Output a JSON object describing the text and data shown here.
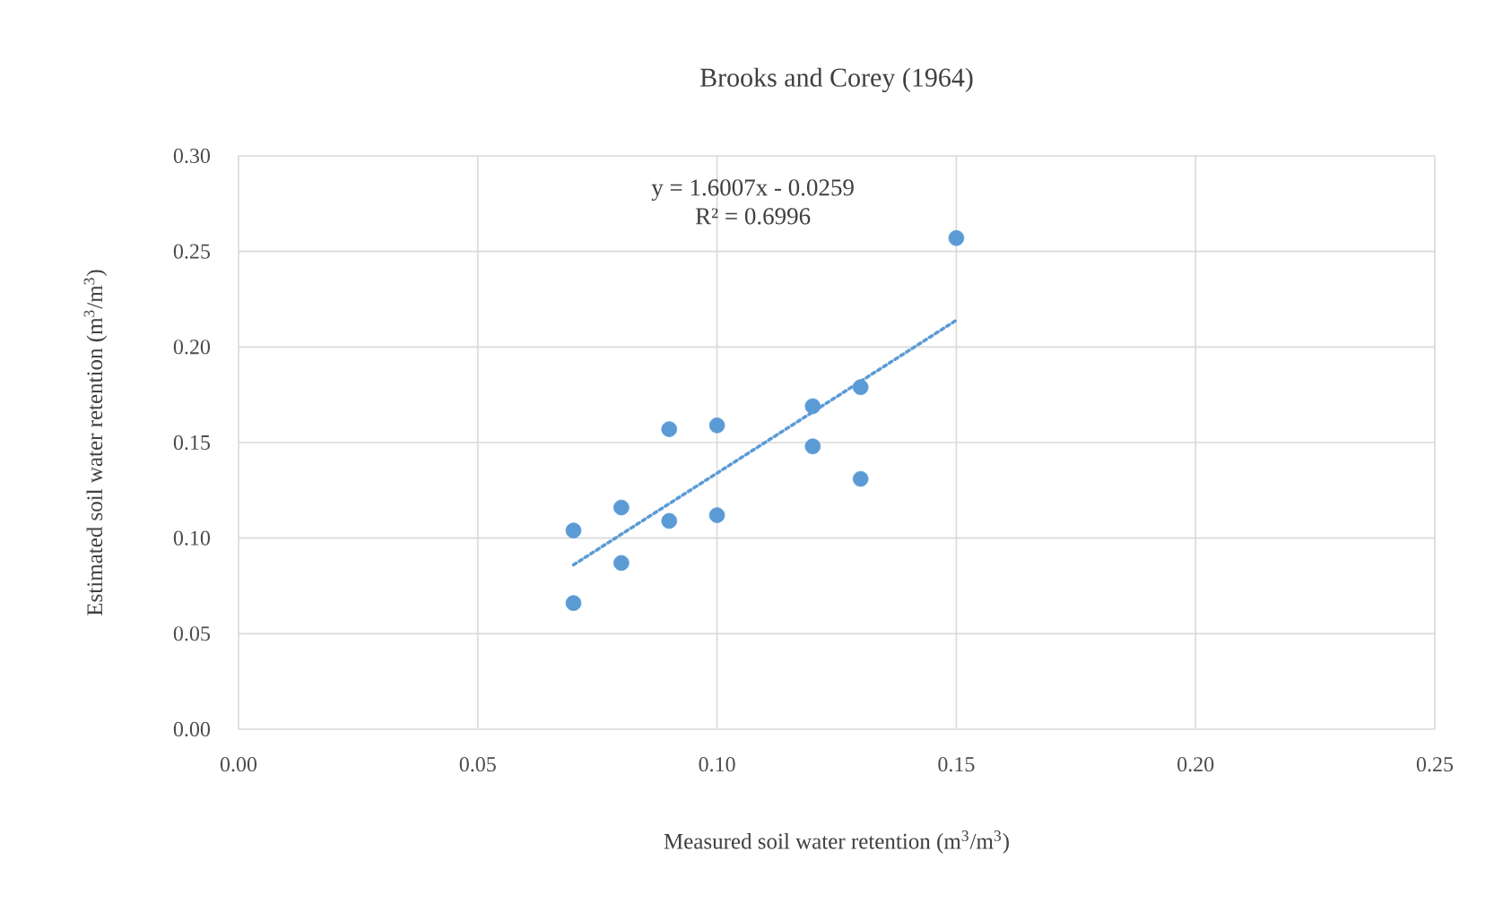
{
  "chart_data": {
    "type": "scatter",
    "title": "Brooks and Corey (1964)",
    "xlabel": "Measured soil water retention (m$^{3}$/m$^{3}$)",
    "ylabel": "Estimated soil water retention (m$^{3}$/m$^{3}$)",
    "xlim": [
      0,
      0.25
    ],
    "ylim": [
      0,
      0.3
    ],
    "xticks": [
      {
        "value": 0,
        "label": "0.00"
      },
      {
        "value": 0.05,
        "label": "0.05"
      },
      {
        "value": 0.1,
        "label": "0.10"
      },
      {
        "value": 0.15,
        "label": "0.15"
      },
      {
        "value": 0.2,
        "label": "0.20"
      },
      {
        "value": 0.25,
        "label": "0.25"
      }
    ],
    "yticks": [
      {
        "value": 0,
        "label": "0.00"
      },
      {
        "value": 0.05,
        "label": "0.05"
      },
      {
        "value": 0.1,
        "label": "0.10"
      },
      {
        "value": 0.15,
        "label": "0.15"
      },
      {
        "value": 0.2,
        "label": "0.20"
      },
      {
        "value": 0.25,
        "label": "0.25"
      },
      {
        "value": 0.3,
        "label": "0.30"
      }
    ],
    "grid": true,
    "annotations": [
      "y = 1.6007x - 0.0259",
      "R² = 0.6996"
    ],
    "series": [
      {
        "color": "#5b9bd5",
        "marker": "circle",
        "x": [
          0.07,
          0.07,
          0.08,
          0.08,
          0.09,
          0.09,
          0.1,
          0.1,
          0.12,
          0.12,
          0.13,
          0.13,
          0.15
        ],
        "values": [
          0.104,
          0.066,
          0.116,
          0.087,
          0.157,
          0.109,
          0.159,
          0.112,
          0.169,
          0.148,
          0.179,
          0.131,
          0.257
        ]
      },
      {
        "type": "line",
        "color": "#5b9bd5",
        "line_style": "dotted",
        "marker": "none",
        "x": [
          0.07,
          0.15
        ],
        "values": [
          0.086,
          0.214
        ]
      }
    ]
  }
}
